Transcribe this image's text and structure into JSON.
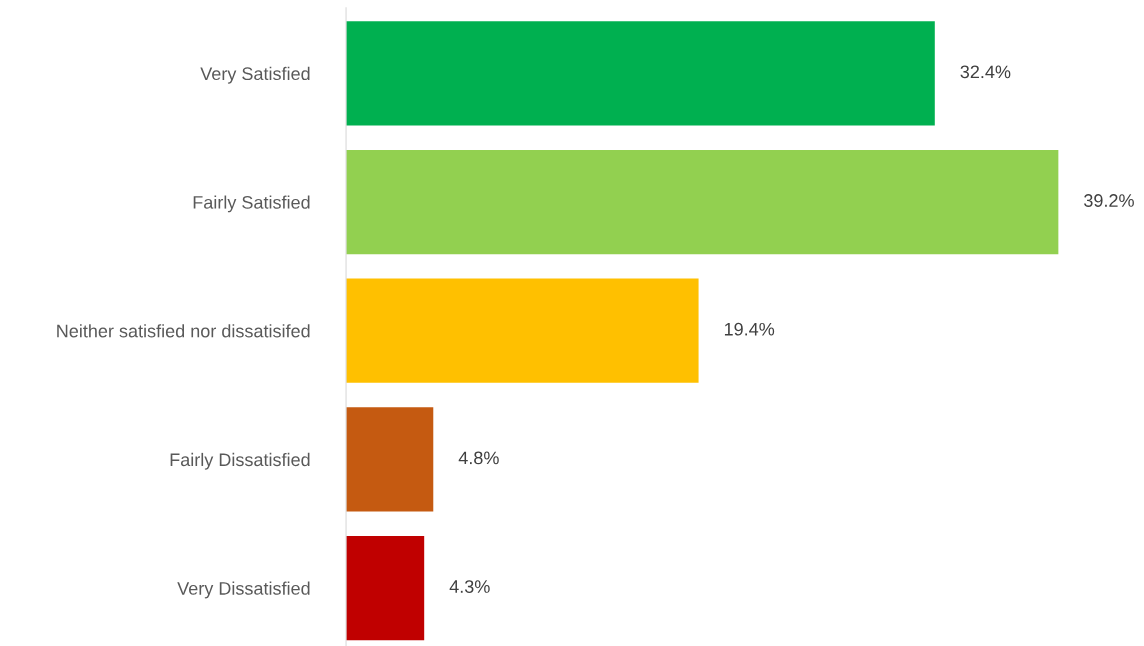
{
  "chart_data": {
    "type": "bar",
    "orientation": "horizontal",
    "categories": [
      "Very Satisfied",
      "Fairly Satisfied",
      "Neither satisfied nor dissatisifed",
      "Fairly Dissatisfied",
      "Very Dissatisfied"
    ],
    "values": [
      32.4,
      39.2,
      19.4,
      4.8,
      4.3
    ],
    "colors": [
      "#00b050",
      "#92d050",
      "#ffc000",
      "#c55a11",
      "#c00000"
    ],
    "value_labels": [
      "32.4%",
      "39.2%",
      "19.4%",
      "4.8%",
      "4.3%"
    ],
    "tick_labels": "y",
    "grid": false,
    "legend": false
  }
}
